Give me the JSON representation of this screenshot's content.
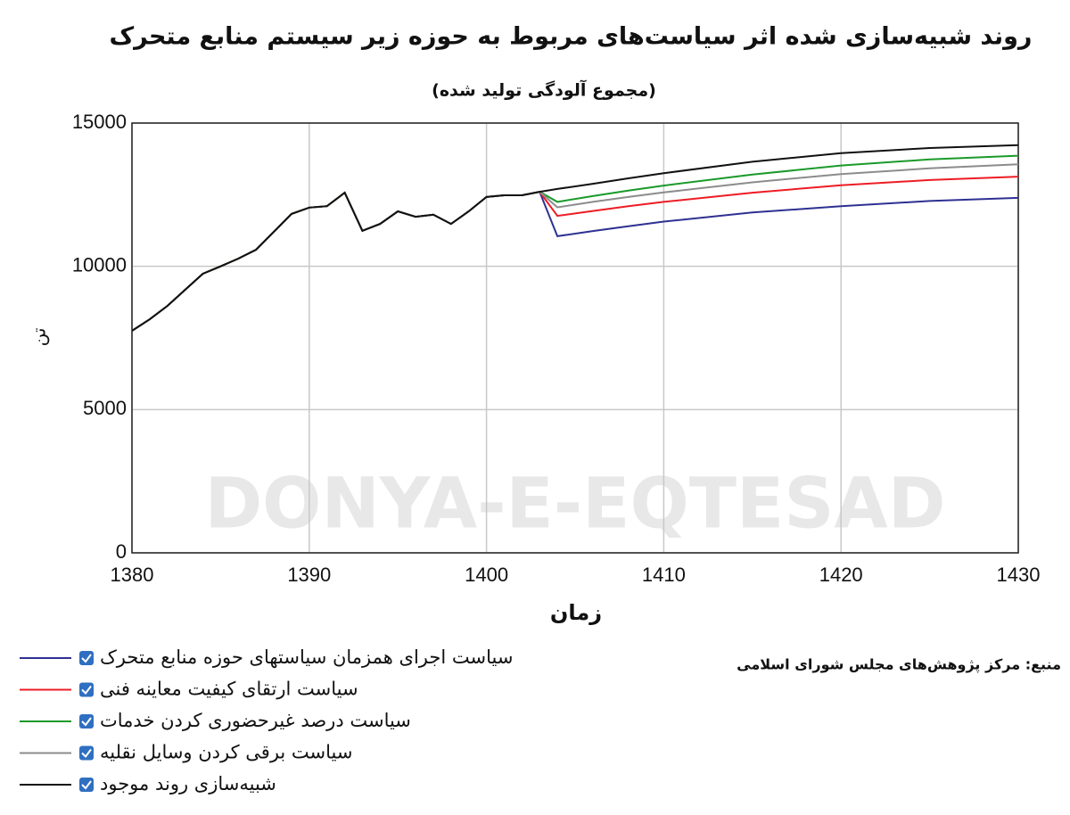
{
  "chart_data": {
    "type": "line",
    "title": "روند شبیه‌سازی شده اثر سیاست‌های مربوط به حوزه زیر سیستم منابع متحرک",
    "subtitle": "(مجموع آلودگی تولید شده)",
    "x_label": "زمان",
    "y_label": "تن",
    "source": "منبع: مرکز پژوهش‌های مجلس شورای اسلامی",
    "watermark": "DONYA-E-EQTESAD",
    "xlim": [
      1380,
      1430
    ],
    "xticks": [
      1380,
      1390,
      1400,
      1410,
      1420,
      1430
    ],
    "ylim": [
      0,
      15000
    ],
    "yticks": [
      0,
      5000,
      10000,
      15000
    ],
    "grid": true,
    "x": [
      1380,
      1381,
      1382,
      1383,
      1384,
      1385,
      1386,
      1387,
      1388,
      1389,
      1390,
      1391,
      1392,
      1393,
      1394,
      1395,
      1396,
      1397,
      1398,
      1399,
      1400,
      1401,
      1402,
      1403,
      1404,
      1406,
      1408,
      1410,
      1415,
      1420,
      1425,
      1430
    ],
    "series": [
      {
        "name": "سیاست اجرای همزمان سیاستهای حوزه منابع متحرک",
        "color": "#2e3192",
        "values": [
          7750,
          8150,
          8620,
          9180,
          9740,
          10000,
          10270,
          10580,
          11200,
          11830,
          12050,
          12100,
          12570,
          11240,
          11480,
          11920,
          11730,
          11800,
          11480,
          11920,
          12420,
          12480,
          12480,
          12600,
          11050,
          11230,
          11400,
          11560,
          11880,
          12100,
          12280,
          12390
        ]
      },
      {
        "name": "سیاست ارتقای کیفیت معاینه فنی",
        "color": "#ed1c24",
        "values": [
          7750,
          8150,
          8620,
          9180,
          9740,
          10000,
          10270,
          10580,
          11200,
          11830,
          12050,
          12100,
          12570,
          11240,
          11480,
          11920,
          11730,
          11800,
          11480,
          11920,
          12420,
          12480,
          12480,
          12600,
          11760,
          11930,
          12100,
          12250,
          12570,
          12830,
          13010,
          13130
        ]
      },
      {
        "name": "سیاست درصد غیرحضوری کردن خدمات",
        "color": "#1a9a2a",
        "values": [
          7750,
          8150,
          8620,
          9180,
          9740,
          10000,
          10270,
          10580,
          11200,
          11830,
          12050,
          12100,
          12570,
          11240,
          11480,
          11920,
          11730,
          11800,
          11480,
          11920,
          12420,
          12480,
          12480,
          12600,
          12250,
          12450,
          12640,
          12820,
          13200,
          13520,
          13730,
          13860
        ]
      },
      {
        "name": "سیاست برقی کردن وسایل نقلیه",
        "color": "#8c8c8c",
        "values": [
          7750,
          8150,
          8620,
          9180,
          9740,
          10000,
          10270,
          10580,
          11200,
          11830,
          12050,
          12100,
          12570,
          11240,
          11480,
          11920,
          11730,
          11800,
          11480,
          11920,
          12420,
          12480,
          12480,
          12600,
          12060,
          12250,
          12420,
          12580,
          12930,
          13220,
          13420,
          13560
        ]
      },
      {
        "name": "شبیه‌سازی روند موجود",
        "color": "#111111",
        "values": [
          7750,
          8150,
          8620,
          9180,
          9740,
          10000,
          10270,
          10580,
          11200,
          11830,
          12050,
          12100,
          12570,
          11240,
          11480,
          11920,
          11730,
          11800,
          11480,
          11920,
          12420,
          12480,
          12480,
          12600,
          12700,
          12880,
          13070,
          13250,
          13650,
          13950,
          14130,
          14230
        ]
      }
    ]
  }
}
